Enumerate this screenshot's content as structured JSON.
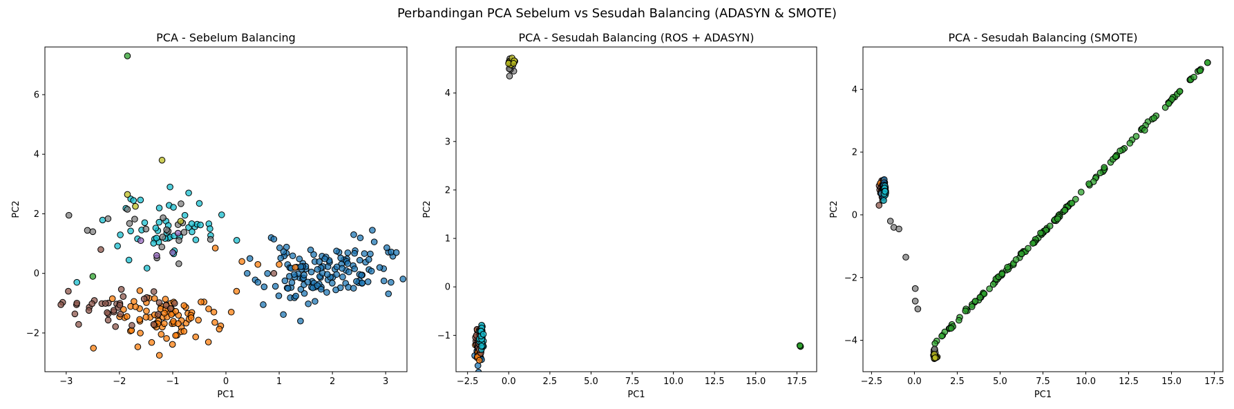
{
  "suptitle": "Perbandingan PCA Sebelum vs Sesudah Balancing (ADASYN & SMOTE)",
  "colors": {
    "blue": "#1f77b4",
    "orange": "#ff7f0e",
    "green": "#2ca02c",
    "brown": "#8c564b",
    "purple": "#9467bd",
    "gray": "#7f7f7f",
    "olive": "#bcbd22",
    "cyan": "#17becf"
  },
  "chart_data": [
    {
      "type": "scatter",
      "title": "PCA - Sebelum Balancing",
      "xlabel": "PC1",
      "ylabel": "PC2",
      "xlim": [
        -3.4,
        3.4
      ],
      "ylim": [
        -3.3,
        7.6
      ],
      "xticks": [
        -3,
        -2,
        -1,
        0,
        1,
        2,
        3
      ],
      "yticks": [
        -2,
        0,
        2,
        4,
        6
      ],
      "grid": false,
      "series": [
        {
          "color": "blue",
          "clusters": [
            {
              "cx": 1.85,
              "cy": 0.0,
              "sx": 0.55,
              "sy": 0.45,
              "n": 130,
              "seed": 11,
              "rho": 0.2
            }
          ],
          "points": [
            [
              3.2,
              0.7
            ],
            [
              2.75,
              1.45
            ],
            [
              2.4,
              1.3
            ],
            [
              0.85,
              1.2
            ],
            [
              0.9,
              1.15
            ],
            [
              0.45,
              0.5
            ],
            [
              0.6,
              -0.3
            ],
            [
              0.7,
              -1.05
            ],
            [
              1.4,
              -1.6
            ],
            [
              3.1,
              -0.3
            ],
            [
              0.4,
              0.0
            ]
          ]
        },
        {
          "color": "orange",
          "clusters": [
            {
              "cx": -1.2,
              "cy": -1.5,
              "sx": 0.5,
              "sy": 0.45,
              "n": 80,
              "seed": 23,
              "rho": 0.0
            }
          ],
          "points": [
            [
              -0.2,
              0.85
            ],
            [
              0.3,
              0.4
            ],
            [
              0.2,
              -0.6
            ],
            [
              0.1,
              -1.3
            ],
            [
              -1.25,
              -2.75
            ],
            [
              1.0,
              0.3
            ],
            [
              1.3,
              0.2
            ],
            [
              0.6,
              0.3
            ]
          ]
        },
        {
          "color": "cyan",
          "clusters": [
            {
              "cx": -1.1,
              "cy": 1.6,
              "sx": 0.45,
              "sy": 0.55,
              "n": 45,
              "seed": 37,
              "rho": 0.1
            }
          ],
          "points": [
            [
              -1.05,
              2.9
            ],
            [
              -0.7,
              2.7
            ],
            [
              -2.8,
              -0.3
            ],
            [
              -0.5,
              2.35
            ],
            [
              -0.3,
              1.5
            ]
          ]
        },
        {
          "color": "brown",
          "clusters": [
            {
              "cx": -1.9,
              "cy": -1.2,
              "sx": 0.55,
              "sy": 0.4,
              "n": 35,
              "seed": 41,
              "rho": 0.0
            }
          ],
          "points": [
            [
              -3.1,
              -1.05
            ],
            [
              -2.8,
              -1.0
            ],
            [
              -2.35,
              0.8
            ],
            [
              0.9,
              0.0
            ]
          ]
        },
        {
          "color": "gray",
          "clusters": [
            {
              "cx": -1.4,
              "cy": 1.3,
              "sx": 0.55,
              "sy": 0.45,
              "n": 18,
              "seed": 53,
              "rho": 0.0
            }
          ],
          "points": [
            [
              -2.95,
              1.95
            ],
            [
              -1.85,
              2.15
            ],
            [
              -2.5,
              1.4
            ]
          ]
        },
        {
          "color": "purple",
          "clusters": [],
          "points": [
            [
              -1.0,
              0.7
            ],
            [
              -1.6,
              1.1
            ],
            [
              -0.9,
              1.35
            ],
            [
              -1.3,
              0.6
            ]
          ]
        },
        {
          "color": "olive",
          "clusters": [],
          "points": [
            [
              -1.2,
              3.8
            ],
            [
              -1.85,
              2.65
            ],
            [
              -1.7,
              2.25
            ],
            [
              -0.85,
              1.75
            ]
          ]
        },
        {
          "color": "green",
          "clusters": [],
          "points": [
            [
              -1.85,
              7.3
            ],
            [
              -2.5,
              -0.1
            ]
          ]
        }
      ]
    },
    {
      "type": "scatter",
      "title": "PCA - Sesudah Balancing (ROS + ADASYN)",
      "xlabel": "PC1",
      "ylabel": "PC2",
      "xlim": [
        -3.2,
        18.7
      ],
      "ylim": [
        -1.75,
        4.95
      ],
      "xticks": [
        -2.5,
        0.0,
        2.5,
        5.0,
        7.5,
        10.0,
        12.5,
        15.0,
        17.5
      ],
      "yticks": [
        -1,
        0,
        1,
        2,
        3,
        4
      ],
      "grid": false,
      "series": [
        {
          "color": "blue",
          "clusters": [
            {
              "cx": -1.8,
              "cy": -1.25,
              "sx": 0.1,
              "sy": 0.15,
              "n": 45,
              "seed": 61,
              "rho": 0.0
            }
          ],
          "points": []
        },
        {
          "color": "orange",
          "clusters": [
            {
              "cx": -1.85,
              "cy": -1.2,
              "sx": 0.1,
              "sy": 0.12,
              "n": 25,
              "seed": 67,
              "rho": 0.0
            }
          ],
          "points": []
        },
        {
          "color": "brown",
          "clusters": [
            {
              "cx": -1.85,
              "cy": -1.1,
              "sx": 0.1,
              "sy": 0.15,
              "n": 25,
              "seed": 71,
              "rho": 0.0
            }
          ],
          "points": []
        },
        {
          "color": "cyan",
          "clusters": [
            {
              "cx": -1.65,
              "cy": -1.05,
              "sx": 0.07,
              "sy": 0.12,
              "n": 30,
              "seed": 73,
              "rho": 0.0
            }
          ],
          "points": []
        },
        {
          "color": "gray",
          "clusters": [
            {
              "cx": 0.1,
              "cy": 4.5,
              "sx": 0.08,
              "sy": 0.08,
              "n": 8,
              "seed": 79,
              "rho": 0.0
            }
          ],
          "points": [
            [
              0.05,
              4.35
            ]
          ]
        },
        {
          "color": "olive",
          "clusters": [
            {
              "cx": 0.2,
              "cy": 4.63,
              "sx": 0.1,
              "sy": 0.04,
              "n": 12,
              "seed": 83,
              "rho": 0.0
            }
          ],
          "points": []
        },
        {
          "color": "green",
          "clusters": [],
          "points": [
            [
              17.7,
              -1.22
            ],
            [
              17.72,
              -1.23
            ],
            [
              17.68,
              -1.21
            ]
          ]
        }
      ]
    },
    {
      "type": "scatter",
      "title": "PCA - Sesudah Balancing (SMOTE)",
      "xlabel": "PC1",
      "ylabel": "PC2",
      "xlim": [
        -3.0,
        18.0
      ],
      "ylim": [
        -5.0,
        5.35
      ],
      "xticks": [
        -2.5,
        0.0,
        2.5,
        5.0,
        7.5,
        10.0,
        12.5,
        15.0,
        17.5
      ],
      "yticks": [
        -4,
        -2,
        0,
        2,
        4
      ],
      "grid": false,
      "line_segment": {
        "color": "green",
        "from": [
          1.2,
          -4.1
        ],
        "to": [
          17.1,
          4.85
        ],
        "n": 140,
        "seed": 97
      },
      "series": [
        {
          "color": "brown",
          "clusters": [
            {
              "cx": -1.85,
              "cy": 0.75,
              "sx": 0.1,
              "sy": 0.2,
              "n": 25,
              "seed": 101,
              "rho": 0.0
            }
          ],
          "points": []
        },
        {
          "color": "orange",
          "clusters": [
            {
              "cx": -1.85,
              "cy": 0.85,
              "sx": 0.08,
              "sy": 0.12,
              "n": 15,
              "seed": 103,
              "rho": 0.0
            }
          ],
          "points": []
        },
        {
          "color": "blue",
          "clusters": [
            {
              "cx": -1.75,
              "cy": 0.9,
              "sx": 0.08,
              "sy": 0.15,
              "n": 18,
              "seed": 107,
              "rho": 0.0
            }
          ],
          "points": []
        },
        {
          "color": "cyan",
          "clusters": [
            {
              "cx": -1.7,
              "cy": 0.7,
              "sx": 0.06,
              "sy": 0.15,
              "n": 15,
              "seed": 109,
              "rho": 0.0
            }
          ],
          "points": []
        },
        {
          "color": "gray",
          "clusters": [
            {
              "cx": 1.15,
              "cy": -4.3,
              "sx": 0.05,
              "sy": 0.1,
              "n": 6,
              "seed": 113,
              "rho": 0.0
            }
          ],
          "points": [
            [
              -1.4,
              -0.2
            ],
            [
              -1.2,
              -0.4
            ],
            [
              -0.9,
              -0.45
            ],
            [
              -0.5,
              -1.35
            ],
            [
              0.05,
              -2.35
            ],
            [
              0.05,
              -2.75
            ],
            [
              0.2,
              -3.0
            ]
          ]
        },
        {
          "color": "olive",
          "clusters": [
            {
              "cx": 1.2,
              "cy": -4.5,
              "sx": 0.08,
              "sy": 0.06,
              "n": 10,
              "seed": 127,
              "rho": 0.0
            }
          ],
          "points": []
        }
      ]
    }
  ]
}
